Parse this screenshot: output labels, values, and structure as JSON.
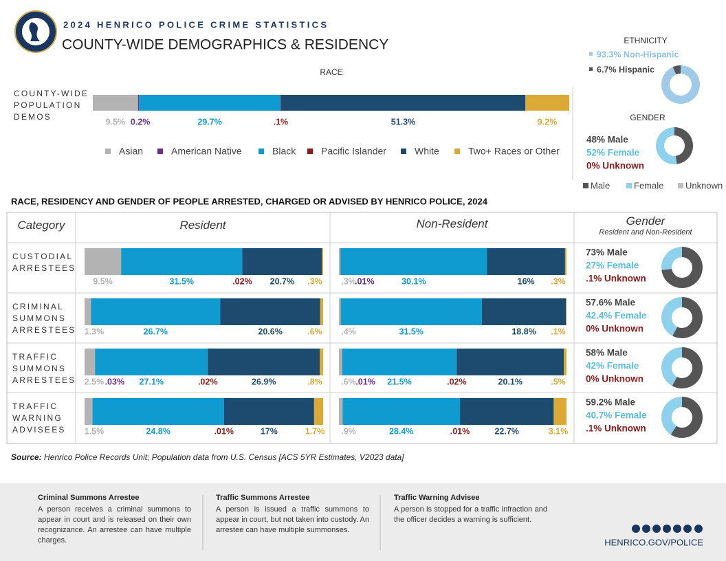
{
  "header": {
    "kicker": "2024 HENRICO POLICE CRIME STATISTICS",
    "title": "COUNTY-WIDE DEMOGRAPHICS & RESIDENCY"
  },
  "races": {
    "names": [
      "Asian",
      "American Native",
      "Black",
      "Pacific Islander",
      "White",
      "Two+ Races or Other"
    ],
    "colors": [
      "#b3b3b3",
      "#6b2c91",
      "#0f9bd0",
      "#8e1b1b",
      "#1d4a6f",
      "#dba935"
    ]
  },
  "population": {
    "title": "RACE",
    "label": "COUNTY-WIDE POPULATION DEMOS",
    "values": [
      9.5,
      0.2,
      29.7,
      0.1,
      51.3,
      9.2
    ],
    "value_labels": [
      "9.5%",
      "0.2%",
      "29.7%",
      ".1%",
      "51.3%",
      "9.2%"
    ]
  },
  "ethnicity": {
    "title": "ETHNICITY",
    "items": [
      {
        "value": 93.3,
        "label": "93.3% Non-Hispanic",
        "color": "#9fcbe9"
      },
      {
        "value": 6.7,
        "label": "6.7% Hispanic",
        "color": "#555555"
      }
    ]
  },
  "gender_legend": {
    "names": [
      "Male",
      "Female",
      "Unknown"
    ],
    "colors": [
      "#555555",
      "#8ed1ec",
      "#bfbfbf"
    ]
  },
  "county_gender": {
    "title": "GENDER",
    "items": [
      {
        "value": 48,
        "label": "48% Male"
      },
      {
        "value": 52,
        "label": "52% Female"
      },
      {
        "value": 0,
        "label": "0% Unknown"
      }
    ]
  },
  "table": {
    "title": "RACE, RESIDENCY AND GENDER OF PEOPLE ARRESTED, CHARGED OR ADVISED BY HENRICO POLICE, 2024",
    "headers": [
      "Category",
      "Resident",
      "Non-Resident",
      "Gender"
    ],
    "gender_subheader": "Resident and Non-Resident",
    "rows": [
      {
        "category": "CUSTODIAL ARRESTEES",
        "resident": {
          "values": [
            9.5,
            null,
            31.5,
            0.02,
            20.7,
            0.3
          ],
          "value_labels": [
            "9.5%",
            null,
            "31.5%",
            ".02%",
            "20.7%",
            ".3%"
          ]
        },
        "non_resident": {
          "values": [
            0.3,
            0.01,
            30.1,
            null,
            16,
            0.3
          ],
          "value_labels": [
            ".3%",
            ".01%",
            "30.1%",
            null,
            "16%",
            ".3%"
          ]
        },
        "gender": [
          {
            "value": 73,
            "label": "73% Male"
          },
          {
            "value": 27,
            "label": "27% Female"
          },
          {
            "value": 0.1,
            "label": ".1% Unknown"
          }
        ]
      },
      {
        "category": "CRIMINAL SUMMONS ARRESTEES",
        "resident": {
          "values": [
            1.3,
            null,
            26.7,
            null,
            20.6,
            0.6
          ],
          "value_labels": [
            "1.3%",
            null,
            "26.7%",
            null,
            "20.6%",
            ".6%"
          ]
        },
        "non_resident": {
          "values": [
            0.4,
            null,
            31.5,
            null,
            18.8,
            0.1
          ],
          "value_labels": [
            ".4%",
            null,
            "31.5%",
            null,
            "18.8%",
            ".1%"
          ]
        },
        "gender": [
          {
            "value": 57.6,
            "label": "57.6% Male"
          },
          {
            "value": 42.4,
            "label": "42.4% Female"
          },
          {
            "value": 0,
            "label": "0% Unknown"
          }
        ]
      },
      {
        "category": "TRAFFIC SUMMONS ARRESTEES",
        "resident": {
          "values": [
            2.5,
            0.03,
            27.1,
            0.02,
            26.9,
            0.8
          ],
          "value_labels": [
            "2.5%",
            ".03%",
            "27.1%",
            ".02%",
            "26.9%",
            ".8%"
          ]
        },
        "non_resident": {
          "values": [
            0.6,
            0.01,
            21.5,
            0.02,
            20.1,
            0.5
          ],
          "value_labels": [
            ".6%",
            ".01%",
            "21.5%",
            ".02%",
            "20.1%",
            ".5%"
          ]
        },
        "gender": [
          {
            "value": 58,
            "label": "58% Male"
          },
          {
            "value": 42,
            "label": "42% Female"
          },
          {
            "value": 0,
            "label": "0% Unknown"
          }
        ]
      },
      {
        "category": "TRAFFIC WARNING ADVISEES",
        "resident": {
          "values": [
            1.5,
            null,
            24.8,
            0.01,
            17,
            1.7
          ],
          "value_labels": [
            "1.5%",
            null,
            "24.8%",
            ".01%",
            "17%",
            "1.7%"
          ]
        },
        "non_resident": {
          "values": [
            0.9,
            null,
            28.4,
            0.01,
            22.7,
            3.1
          ],
          "value_labels": [
            ".9%",
            null,
            "28.4%",
            ".01%",
            "22.7%",
            "3.1%"
          ]
        },
        "gender": [
          {
            "value": 59.2,
            "label": "59.2% Male"
          },
          {
            "value": 40.7,
            "label": "40.7% Female"
          },
          {
            "value": 0.1,
            "label": ".1% Unknown"
          }
        ]
      }
    ]
  },
  "source": {
    "label": "Source:",
    "text": "Henrico Police Records Unit; Population data from U.S. Census [ACS 5YR Estimates, V2023 data]"
  },
  "definitions": [
    {
      "term": "Criminal Summons Arrestee",
      "text": "A person receives a criminal summons to appear in court and is released on their own recognizance. An arrestee can have multiple charges."
    },
    {
      "term": "Traffic Summons Arrestee",
      "text": "A person is issued a traffic summons to appear in court, but not taken into custody. An arrestee can have multiple summonses."
    },
    {
      "term": "Traffic Warning Advisee",
      "text": "A person is stopped for a traffic infraction and the officer decides a warning is sufficient."
    }
  ],
  "website": "HENRICO.GOV/POLICE"
}
